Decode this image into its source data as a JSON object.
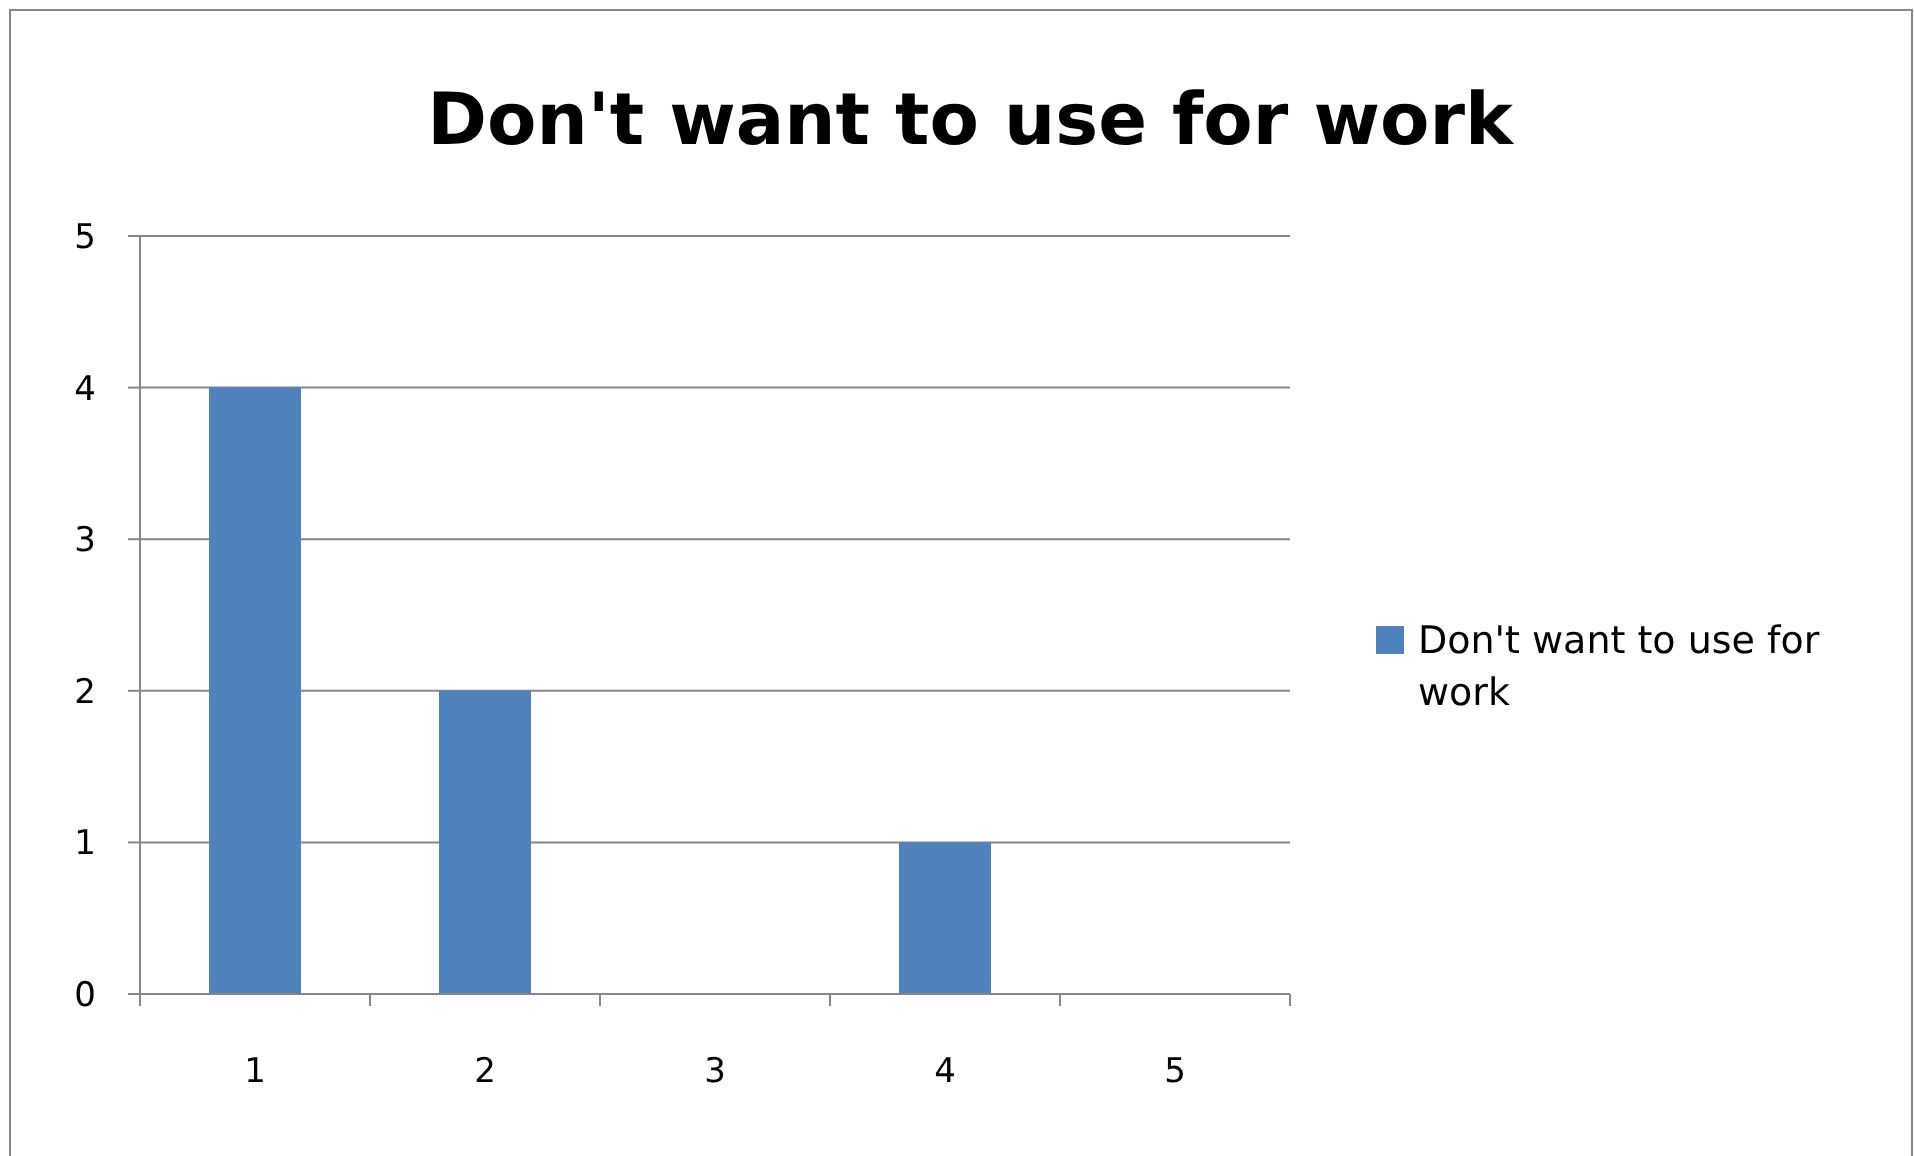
{
  "chart_data": {
    "type": "bar",
    "title": "Don't want to use for work",
    "categories": [
      "1",
      "2",
      "3",
      "4",
      "5"
    ],
    "series": [
      {
        "name": "Don't want to use for work",
        "color": "#4f81bd",
        "values": [
          4,
          2,
          0,
          1,
          0
        ]
      }
    ],
    "ylim": [
      0,
      5
    ],
    "yticks": [
      0,
      1,
      2,
      3,
      4,
      5
    ],
    "grid": "y",
    "legend": "right"
  }
}
